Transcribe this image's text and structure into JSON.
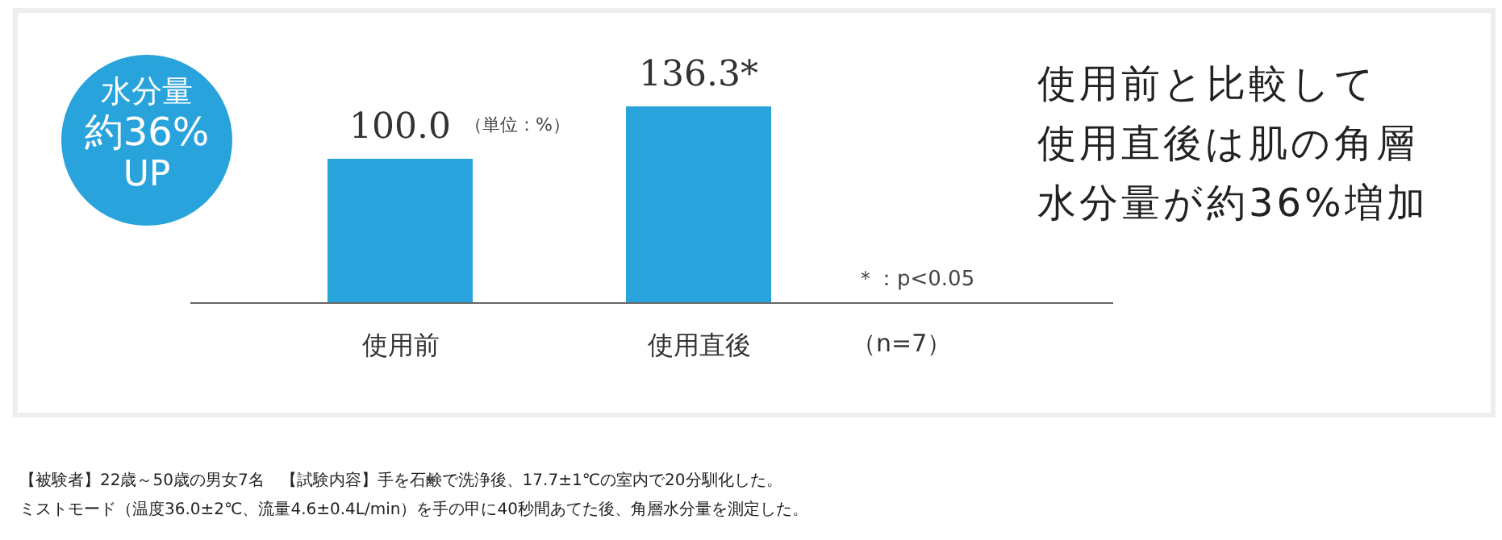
{
  "chart_data": {
    "type": "bar",
    "categories": [
      "使用前",
      "使用直後"
    ],
    "values": [
      100.0,
      136.3
    ],
    "value_labels": [
      "100.0",
      "136.3*"
    ],
    "color": "#29a3dc",
    "annotations": [
      "（単位：%）",
      "＊：p<0.05",
      "（n=7）",
      "使用前と比較して",
      "使用直後は肌の角層",
      "水分量が約36%増加",
      "水分量",
      "約36%",
      "UP",
      "【被験者】22歳～50歳の男女7名　【試験内容】手を石鹸で洗浄後、17.7±1℃の室内で20分馴化した。",
      "ミストモード（温度36.0±2℃、流量4.6±0.4L/min）を手の甲に40秒間あてた後、角層水分量を測定した。"
    ]
  }
}
